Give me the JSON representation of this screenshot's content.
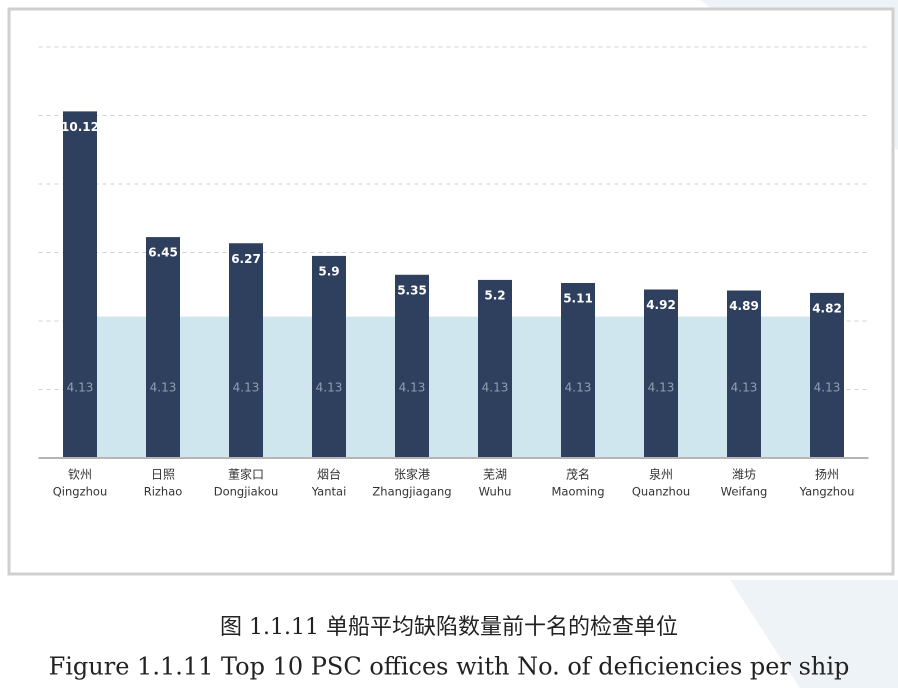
{
  "chart_data": {
    "type": "bar",
    "categories": [
      "钦州",
      "日照",
      "董家口",
      "烟台",
      "张家港",
      "芜湖",
      "茂名",
      "泉州",
      "潍坊",
      "扬州"
    ],
    "categories_en": [
      "Qingzhou",
      "Rizhao",
      "Dongjiakou",
      "Yantai",
      "Zhangjiagang",
      "Wuhu",
      "Maoming",
      "Quanzhou",
      "Weifang",
      "Yangzhou"
    ],
    "values": [
      10.12,
      6.45,
      6.27,
      5.9,
      5.35,
      5.2,
      5.11,
      4.92,
      4.89,
      4.82
    ],
    "color": "#2f3f5e",
    "average": 4.13,
    "average_color": "#cfe6ee",
    "ylim": [
      0,
      12
    ],
    "yticks": [
      0,
      2,
      4,
      6,
      8,
      10,
      12
    ],
    "grid": true
  },
  "caption": {
    "cn": "图 1.1.11 单船平均缺陷数量前十名的检查单位",
    "en": "Figure 1.1.11 Top 10 PSC offices with No. of deficiencies per ship"
  }
}
